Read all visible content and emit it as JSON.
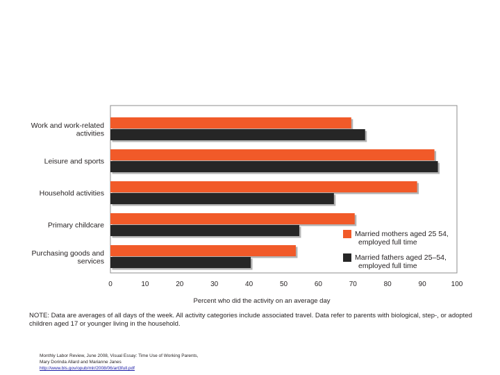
{
  "chart_data": {
    "type": "bar",
    "orientation": "horizontal",
    "categories": [
      [
        "Work and work-related",
        "activities"
      ],
      [
        "Leisure and sports"
      ],
      [
        "Household activities"
      ],
      [
        "Primary childcare"
      ],
      [
        "Purchasing goods and",
        "services"
      ]
    ],
    "series": [
      {
        "name": [
          "Married mothers aged 25 54,",
          "employed full time"
        ],
        "color": "#f15a29",
        "values": [
          69.5,
          93.5,
          88.5,
          70.5,
          53.5
        ]
      },
      {
        "name": [
          "Married fathers aged 25–54,",
          "employed full time"
        ],
        "color": "#262626",
        "values": [
          73.5,
          94.5,
          64.5,
          54.5,
          40.5
        ]
      }
    ],
    "xlim": [
      0,
      100
    ],
    "xticks": [
      "0",
      "10",
      "20",
      "30",
      "40",
      "50",
      "60",
      "70",
      "80",
      "90",
      "100"
    ],
    "xlabel": "Percent who did the activity on an average day",
    "legend_position": "lower-right inside plot",
    "grid": false
  },
  "note": "NOTE:  Data are averages of all days of the week. All activity categories include associated travel. Data refer to parents with biological, step-, or adopted children aged 17 or younger living in the household.",
  "source": {
    "line1": "Monthly Labor Review, June 2008, Visual Essay: Time Use of Working Parents,",
    "line2": "Mary Dorinda Allard and Marianne Janes",
    "link": "http://www.bls.gov/opub/mlr/2008/06/art3full.pdf"
  }
}
